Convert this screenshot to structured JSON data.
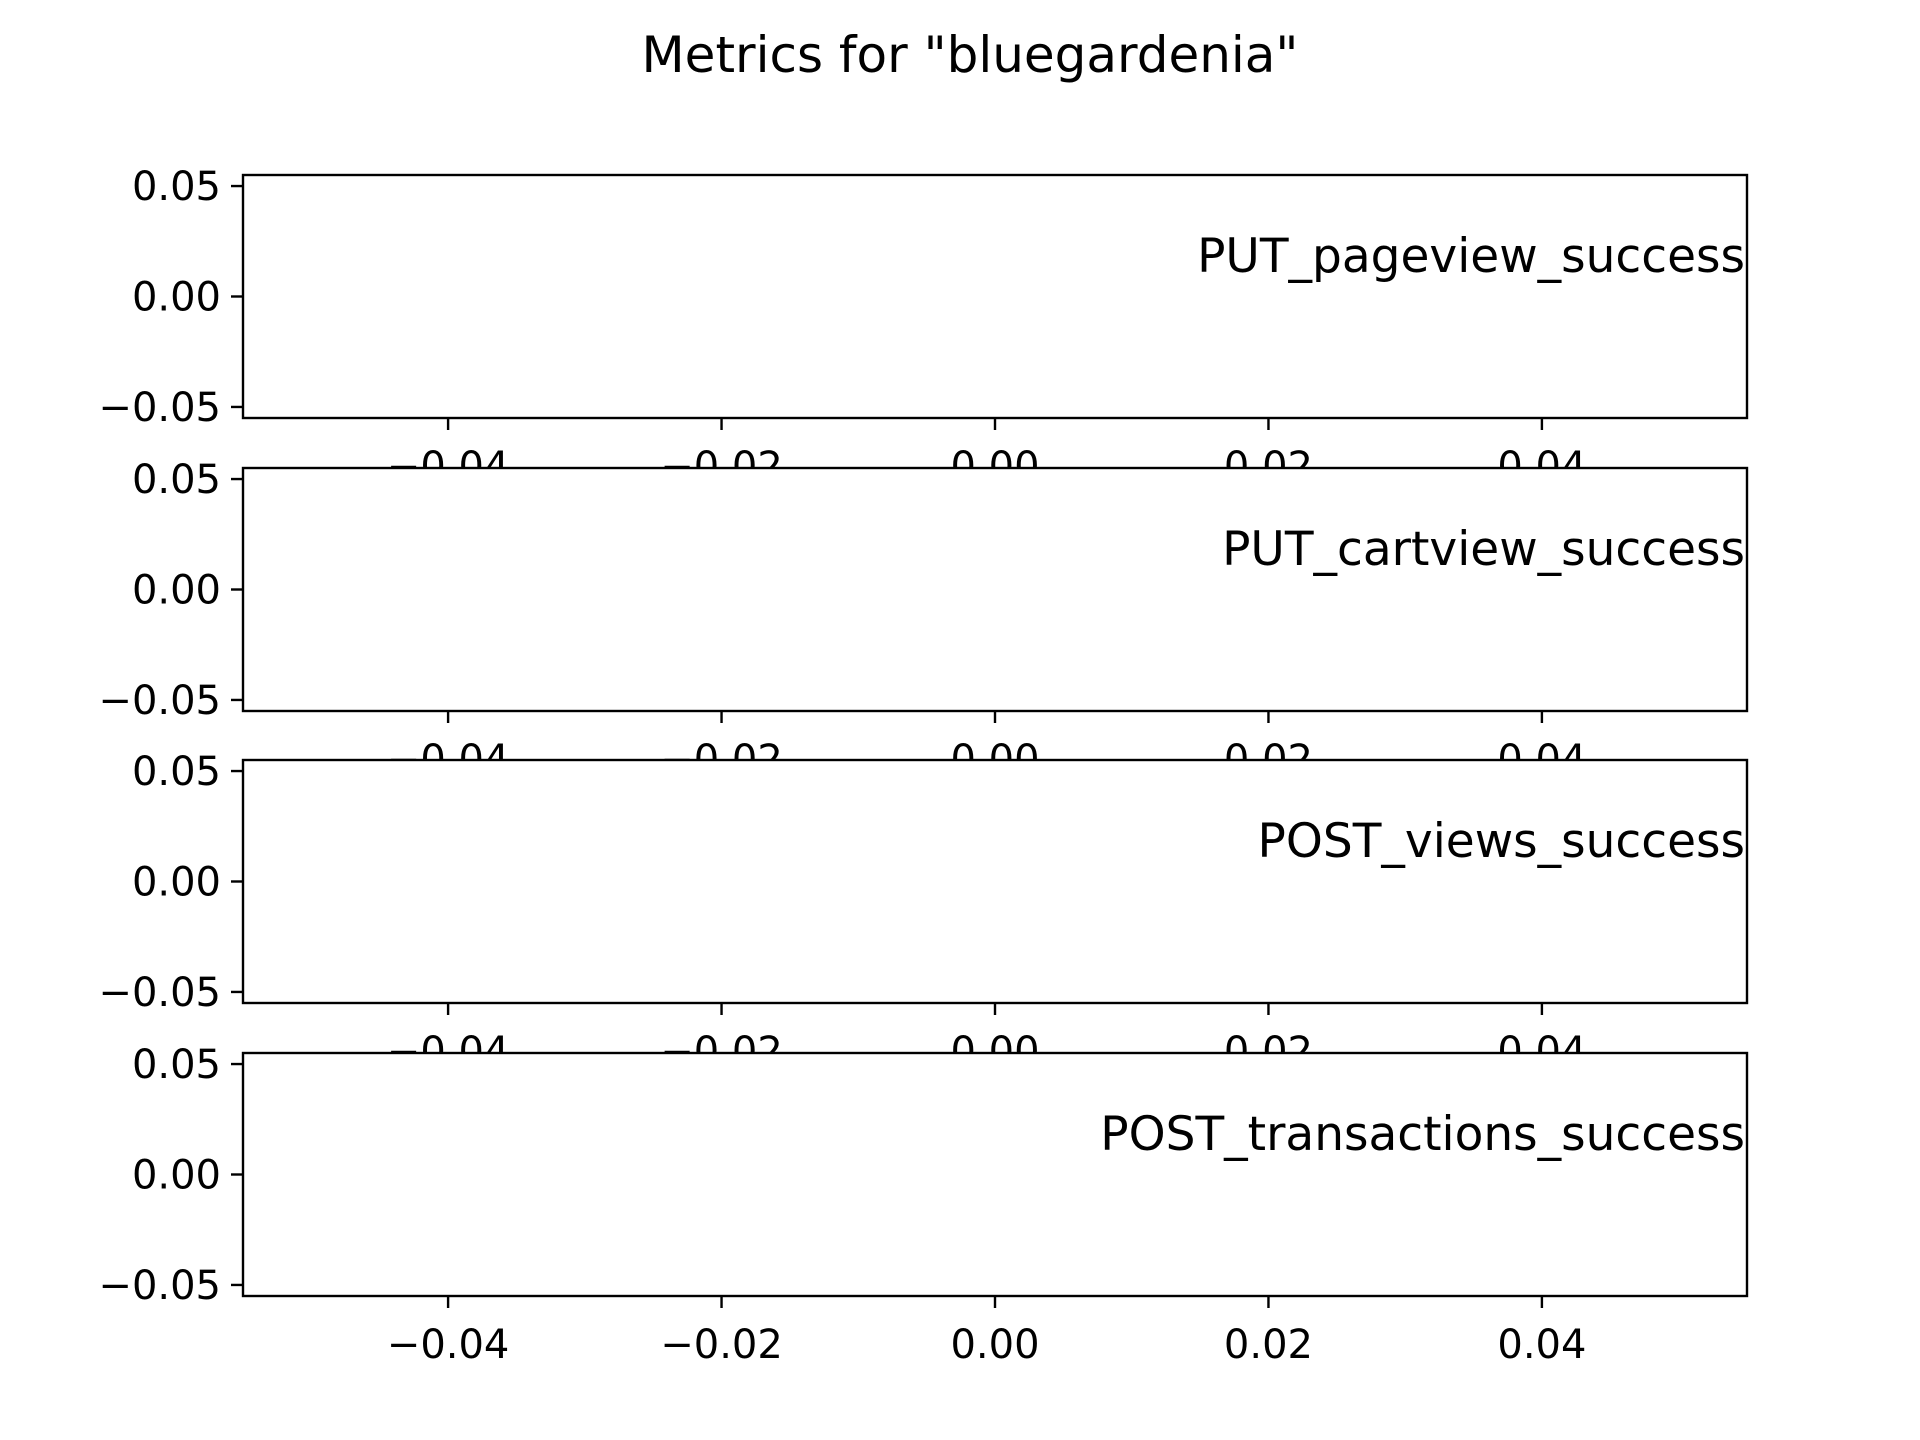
{
  "chart_data": {
    "type": "line",
    "title": "Metrics for \"bluegardenia\"",
    "xlim": [
      -0.055,
      0.055
    ],
    "ylim": [
      -0.055,
      0.055
    ],
    "x_ticks": [
      "−0.04",
      "−0.02",
      "0.00",
      "0.02",
      "0.04"
    ],
    "x_tick_values": [
      -0.04,
      -0.02,
      0.0,
      0.02,
      0.04
    ],
    "y_ticks": [
      "−0.05",
      "0.00",
      "0.05"
    ],
    "y_tick_values": [
      -0.05,
      0.0,
      0.05
    ],
    "grid": false,
    "panels": [
      {
        "label": "PUT_pageview_success",
        "x": [],
        "y": []
      },
      {
        "label": "PUT_cartview_success",
        "x": [],
        "y": []
      },
      {
        "label": "POST_views_success",
        "x": [],
        "y": []
      },
      {
        "label": "POST_transactions_success",
        "x": [],
        "y": []
      }
    ]
  }
}
